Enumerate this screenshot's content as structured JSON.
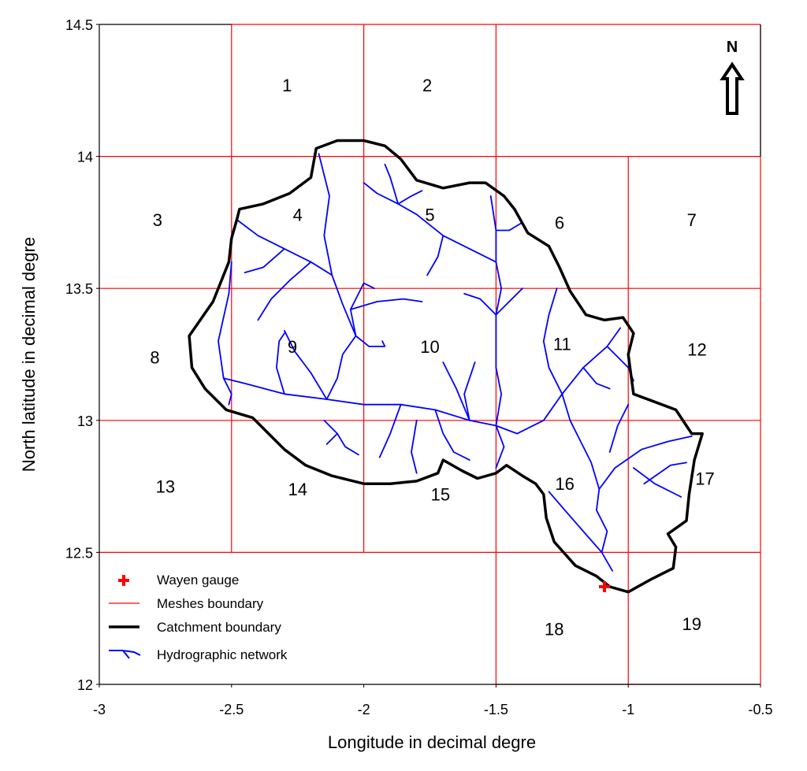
{
  "chart_data": {
    "type": "map",
    "xlabel": "Longitude in decimal degre",
    "ylabel": "North latitude in decimal degre",
    "xlim": [
      -3,
      -0.5
    ],
    "ylim": [
      12,
      14.5
    ],
    "x_ticks": [
      {
        "value": -3,
        "label": "-3"
      },
      {
        "value": -2.5,
        "label": "-2.5"
      },
      {
        "value": -2,
        "label": "-2"
      },
      {
        "value": -1.5,
        "label": "-1.5"
      },
      {
        "value": -1,
        "label": "-1"
      },
      {
        "value": -0.5,
        "label": "-0.5"
      }
    ],
    "y_ticks": [
      {
        "value": 12,
        "label": "12"
      },
      {
        "value": 12.5,
        "label": "12.5"
      },
      {
        "value": 13,
        "label": "13"
      },
      {
        "value": 13.5,
        "label": "13.5"
      },
      {
        "value": 14,
        "label": "14"
      },
      {
        "value": 14.5,
        "label": "14.5"
      }
    ],
    "meshes": [
      {
        "id": "1",
        "lon": -2.29,
        "lat": 14.27
      },
      {
        "id": "2",
        "lon": -1.76,
        "lat": 14.27
      },
      {
        "id": "3",
        "lon": -2.78,
        "lat": 13.76
      },
      {
        "id": "4",
        "lon": -2.25,
        "lat": 13.78
      },
      {
        "id": "5",
        "lon": -1.75,
        "lat": 13.78
      },
      {
        "id": "6",
        "lon": -1.26,
        "lat": 13.75
      },
      {
        "id": "7",
        "lon": -0.76,
        "lat": 13.76
      },
      {
        "id": "8",
        "lon": -2.79,
        "lat": 13.24
      },
      {
        "id": "9",
        "lon": -2.27,
        "lat": 13.28
      },
      {
        "id": "10",
        "lon": -1.75,
        "lat": 13.28
      },
      {
        "id": "11",
        "lon": -1.25,
        "lat": 13.29
      },
      {
        "id": "12",
        "lon": -0.74,
        "lat": 13.27
      },
      {
        "id": "13",
        "lon": -2.75,
        "lat": 12.75
      },
      {
        "id": "14",
        "lon": -2.25,
        "lat": 12.74
      },
      {
        "id": "15",
        "lon": -1.71,
        "lat": 12.72
      },
      {
        "id": "16",
        "lon": -1.24,
        "lat": 12.76
      },
      {
        "id": "17",
        "lon": -0.71,
        "lat": 12.78
      },
      {
        "id": "18",
        "lon": -1.28,
        "lat": 12.21
      },
      {
        "id": "19",
        "lon": -0.76,
        "lat": 12.23
      }
    ],
    "mesh_grid_lines": [
      {
        "x": [
          -2.5,
          -2.5
        ],
        "y": [
          12.5,
          14.5
        ]
      },
      {
        "x": [
          -2,
          -2
        ],
        "y": [
          12.5,
          14.5
        ]
      },
      {
        "x": [
          -1.5,
          -1.5
        ],
        "y": [
          12,
          14.5
        ]
      },
      {
        "x": [
          -1,
          -1
        ],
        "y": [
          12,
          14
        ]
      },
      {
        "x": [
          -0.5,
          -0.5
        ],
        "y": [
          12,
          14.5
        ]
      },
      {
        "x": [
          -2.5,
          -0.5
        ],
        "y": [
          14.5,
          14.5
        ]
      },
      {
        "x": [
          -3,
          -0.5
        ],
        "y": [
          14,
          14
        ]
      },
      {
        "x": [
          -3,
          -0.5
        ],
        "y": [
          13.5,
          13.5
        ]
      },
      {
        "x": [
          -3,
          -0.5
        ],
        "y": [
          13,
          13
        ]
      },
      {
        "x": [
          -3,
          -0.5
        ],
        "y": [
          12.5,
          12.5
        ]
      },
      {
        "x": [
          -1.5,
          -0.5
        ],
        "y": [
          12,
          12
        ]
      }
    ],
    "catchment_boundary": [
      [
        -2.18,
        14.03
      ],
      [
        -2.1,
        14.06
      ],
      [
        -2.0,
        14.06
      ],
      [
        -1.92,
        14.04
      ],
      [
        -1.86,
        13.99
      ],
      [
        -1.8,
        13.91
      ],
      [
        -1.7,
        13.88
      ],
      [
        -1.6,
        13.9
      ],
      [
        -1.54,
        13.9
      ],
      [
        -1.47,
        13.85
      ],
      [
        -1.43,
        13.8
      ],
      [
        -1.38,
        13.71
      ],
      [
        -1.3,
        13.66
      ],
      [
        -1.26,
        13.58
      ],
      [
        -1.22,
        13.49
      ],
      [
        -1.16,
        13.4
      ],
      [
        -1.09,
        13.38
      ],
      [
        -1.02,
        13.39
      ],
      [
        -0.98,
        13.33
      ],
      [
        -1.0,
        13.25
      ],
      [
        -0.98,
        13.1
      ],
      [
        -0.9,
        13.07
      ],
      [
        -0.82,
        13.04
      ],
      [
        -0.76,
        12.95
      ],
      [
        -0.72,
        12.95
      ],
      [
        -0.75,
        12.85
      ],
      [
        -0.77,
        12.72
      ],
      [
        -0.78,
        12.62
      ],
      [
        -0.85,
        12.57
      ],
      [
        -0.82,
        12.52
      ],
      [
        -0.83,
        12.44
      ],
      [
        -0.91,
        12.4
      ],
      [
        -1.0,
        12.35
      ],
      [
        -1.07,
        12.37
      ],
      [
        -1.12,
        12.41
      ],
      [
        -1.2,
        12.45
      ],
      [
        -1.28,
        12.54
      ],
      [
        -1.31,
        12.63
      ],
      [
        -1.32,
        12.72
      ],
      [
        -1.35,
        12.76
      ],
      [
        -1.4,
        12.79
      ],
      [
        -1.46,
        12.83
      ],
      [
        -1.5,
        12.8
      ],
      [
        -1.57,
        12.78
      ],
      [
        -1.63,
        12.81
      ],
      [
        -1.7,
        12.85
      ],
      [
        -1.72,
        12.8
      ],
      [
        -1.8,
        12.77
      ],
      [
        -1.9,
        12.76
      ],
      [
        -2.0,
        12.76
      ],
      [
        -2.12,
        12.79
      ],
      [
        -2.22,
        12.83
      ],
      [
        -2.3,
        12.89
      ],
      [
        -2.36,
        12.95
      ],
      [
        -2.42,
        13.01
      ],
      [
        -2.52,
        13.04
      ],
      [
        -2.6,
        13.12
      ],
      [
        -2.65,
        13.2
      ],
      [
        -2.66,
        13.32
      ],
      [
        -2.57,
        13.45
      ],
      [
        -2.51,
        13.6
      ],
      [
        -2.5,
        13.69
      ],
      [
        -2.48,
        13.76
      ],
      [
        -2.47,
        13.8
      ],
      [
        -2.38,
        13.82
      ],
      [
        -2.28,
        13.86
      ],
      [
        -2.2,
        13.92
      ],
      [
        -2.18,
        14.03
      ]
    ],
    "hydrographic_network": [
      [
        [
          -1.06,
          12.43
        ],
        [
          -1.1,
          12.5
        ],
        [
          -1.08,
          12.58
        ],
        [
          -1.12,
          12.66
        ],
        [
          -1.11,
          12.74
        ],
        [
          -1.05,
          12.82
        ],
        [
          -0.95,
          12.89
        ],
        [
          -0.85,
          12.92
        ],
        [
          -0.76,
          12.94
        ]
      ],
      [
        [
          -1.1,
          12.5
        ],
        [
          -1.17,
          12.58
        ],
        [
          -1.24,
          12.66
        ],
        [
          -1.3,
          12.73
        ]
      ],
      [
        [
          -1.11,
          12.74
        ],
        [
          -1.14,
          12.84
        ],
        [
          -1.18,
          12.92
        ],
        [
          -1.22,
          13.0
        ],
        [
          -1.25,
          13.1
        ],
        [
          -1.17,
          13.2
        ],
        [
          -1.08,
          13.28
        ],
        [
          -1.03,
          13.35
        ]
      ],
      [
        [
          -0.98,
          12.82
        ],
        [
          -0.9,
          12.76
        ],
        [
          -0.8,
          12.71
        ]
      ],
      [
        [
          -0.94,
          12.76
        ],
        [
          -0.84,
          12.83
        ],
        [
          -0.78,
          12.84
        ]
      ],
      [
        [
          -1.07,
          12.88
        ],
        [
          -1.04,
          12.98
        ],
        [
          -1.0,
          13.06
        ]
      ],
      [
        [
          -1.25,
          13.1
        ],
        [
          -1.32,
          13.0
        ],
        [
          -1.42,
          12.95
        ],
        [
          -1.5,
          12.98
        ],
        [
          -1.6,
          13.0
        ],
        [
          -1.73,
          13.04
        ],
        [
          -1.86,
          13.06
        ],
        [
          -2.0,
          13.06
        ],
        [
          -2.14,
          13.08
        ],
        [
          -2.3,
          13.1
        ],
        [
          -2.45,
          13.14
        ],
        [
          -2.53,
          13.16
        ]
      ],
      [
        [
          -2.53,
          13.16
        ],
        [
          -2.55,
          13.3
        ],
        [
          -2.51,
          13.48
        ],
        [
          -2.5,
          13.6
        ]
      ],
      [
        [
          -2.53,
          13.16
        ],
        [
          -2.5,
          13.1
        ],
        [
          -2.51,
          13.06
        ]
      ],
      [
        [
          -2.15,
          13.0
        ],
        [
          -2.1,
          12.95
        ],
        [
          -2.14,
          12.91
        ]
      ],
      [
        [
          -2.1,
          12.95
        ],
        [
          -2.07,
          12.9
        ],
        [
          -2.02,
          12.87
        ]
      ],
      [
        [
          -2.14,
          13.08
        ],
        [
          -2.1,
          13.16
        ],
        [
          -2.08,
          13.25
        ],
        [
          -2.03,
          13.32
        ],
        [
          -2.05,
          13.42
        ],
        [
          -2.0,
          13.52
        ],
        [
          -1.96,
          13.5
        ]
      ],
      [
        [
          -2.05,
          13.42
        ],
        [
          -1.95,
          13.45
        ],
        [
          -1.85,
          13.46
        ],
        [
          -1.78,
          13.45
        ]
      ],
      [
        [
          -2.03,
          13.32
        ],
        [
          -1.98,
          13.28
        ],
        [
          -1.92,
          13.28
        ],
        [
          -1.93,
          13.3
        ]
      ],
      [
        [
          -2.03,
          13.32
        ],
        [
          -2.08,
          13.44
        ],
        [
          -2.12,
          13.55
        ],
        [
          -2.15,
          13.7
        ],
        [
          -2.13,
          13.85
        ],
        [
          -2.17,
          14.01
        ]
      ],
      [
        [
          -2.12,
          13.55
        ],
        [
          -2.2,
          13.6
        ],
        [
          -2.3,
          13.65
        ],
        [
          -2.4,
          13.7
        ],
        [
          -2.48,
          13.76
        ]
      ],
      [
        [
          -2.2,
          13.6
        ],
        [
          -2.28,
          13.53
        ],
        [
          -2.35,
          13.46
        ],
        [
          -2.4,
          13.38
        ]
      ],
      [
        [
          -2.3,
          13.65
        ],
        [
          -2.38,
          13.58
        ],
        [
          -2.45,
          13.56
        ]
      ],
      [
        [
          -2.3,
          13.1
        ],
        [
          -2.33,
          13.2
        ],
        [
          -2.32,
          13.3
        ],
        [
          -2.3,
          13.33
        ]
      ],
      [
        [
          -2.14,
          13.08
        ],
        [
          -2.2,
          13.18
        ],
        [
          -2.26,
          13.26
        ],
        [
          -2.3,
          13.34
        ]
      ],
      [
        [
          -1.86,
          13.06
        ],
        [
          -1.9,
          12.95
        ],
        [
          -1.94,
          12.86
        ]
      ],
      [
        [
          -1.8,
          13.0
        ],
        [
          -1.82,
          12.88
        ],
        [
          -1.8,
          12.8
        ]
      ],
      [
        [
          -1.73,
          13.04
        ],
        [
          -1.7,
          12.95
        ],
        [
          -1.66,
          12.88
        ],
        [
          -1.6,
          12.85
        ]
      ],
      [
        [
          -1.6,
          13.0
        ],
        [
          -1.65,
          13.12
        ],
        [
          -1.7,
          13.22
        ]
      ],
      [
        [
          -1.6,
          13.0
        ],
        [
          -1.62,
          13.1
        ],
        [
          -1.58,
          13.22
        ]
      ],
      [
        [
          -1.5,
          12.98
        ],
        [
          -1.47,
          12.9
        ],
        [
          -1.5,
          12.82
        ]
      ],
      [
        [
          -1.5,
          12.98
        ],
        [
          -1.48,
          13.1
        ],
        [
          -1.5,
          13.2
        ],
        [
          -1.5,
          13.3
        ],
        [
          -1.5,
          13.4
        ],
        [
          -1.48,
          13.5
        ],
        [
          -1.5,
          13.6
        ],
        [
          -1.5,
          13.72
        ],
        [
          -1.52,
          13.85
        ]
      ],
      [
        [
          -1.5,
          13.4
        ],
        [
          -1.56,
          13.46
        ],
        [
          -1.62,
          13.48
        ]
      ],
      [
        [
          -1.5,
          13.4
        ],
        [
          -1.44,
          13.46
        ],
        [
          -1.4,
          13.5
        ]
      ],
      [
        [
          -1.5,
          13.6
        ],
        [
          -1.6,
          13.65
        ],
        [
          -1.7,
          13.7
        ],
        [
          -1.8,
          13.78
        ],
        [
          -1.87,
          13.82
        ]
      ],
      [
        [
          -1.5,
          13.72
        ],
        [
          -1.45,
          13.72
        ],
        [
          -1.4,
          13.75
        ]
      ],
      [
        [
          -1.87,
          13.82
        ],
        [
          -1.9,
          13.92
        ],
        [
          -1.92,
          13.97
        ]
      ],
      [
        [
          -1.87,
          13.82
        ],
        [
          -1.95,
          13.86
        ],
        [
          -2.0,
          13.9
        ]
      ],
      [
        [
          -1.87,
          13.82
        ],
        [
          -1.82,
          13.85
        ],
        [
          -1.78,
          13.87
        ]
      ],
      [
        [
          -1.7,
          13.7
        ],
        [
          -1.72,
          13.62
        ],
        [
          -1.76,
          13.55
        ]
      ],
      [
        [
          -1.25,
          13.1
        ],
        [
          -1.3,
          13.2
        ],
        [
          -1.32,
          13.3
        ],
        [
          -1.3,
          13.4
        ],
        [
          -1.27,
          13.5
        ]
      ],
      [
        [
          -1.17,
          13.2
        ],
        [
          -1.12,
          13.14
        ],
        [
          -1.07,
          13.12
        ]
      ],
      [
        [
          -1.08,
          13.28
        ],
        [
          -1.0,
          13.2
        ],
        [
          -0.98,
          13.15
        ]
      ]
    ],
    "gauge": {
      "name": "Wayen gauge",
      "lon": -1.09,
      "lat": 12.37
    },
    "north_arrow": {
      "label": "N"
    },
    "legend": [
      {
        "label": "Wayen gauge",
        "symbol": "red-cross",
        "color": "#ff0000"
      },
      {
        "label": "Meshes boundary",
        "symbol": "thin-line",
        "color": "#ff0000"
      },
      {
        "label": "Catchment boundary",
        "symbol": "thick-line",
        "color": "#000000"
      },
      {
        "label": "Hydrographic network",
        "symbol": "river",
        "color": "#0000ff"
      }
    ],
    "colors": {
      "mesh": "#ff0000",
      "catchment": "#000000",
      "river": "#0000ff",
      "gauge": "#ff0000"
    },
    "legend_placement": "bottom-left"
  }
}
